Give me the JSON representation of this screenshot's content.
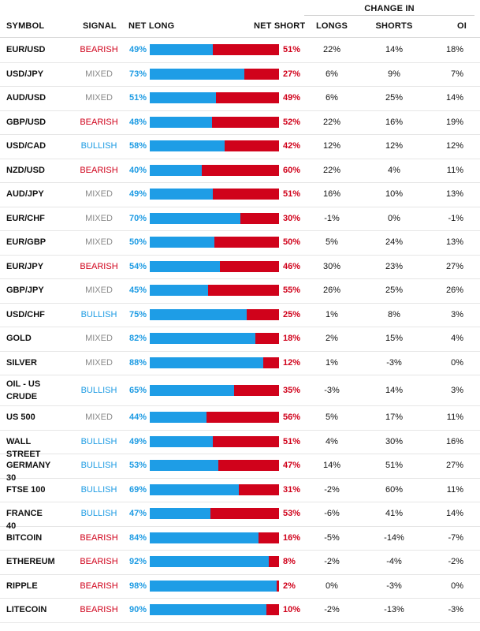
{
  "header": {
    "change_in": "CHANGE IN",
    "symbol": "SYMBOL",
    "signal": "SIGNAL",
    "net_long": "NET LONG",
    "net_short": "NET SHORT",
    "longs": "LONGS",
    "shorts": "SHORTS",
    "oi": "OI"
  },
  "colors": {
    "bearish": "#d0021b",
    "bullish": "#1d9be3",
    "mixed": "#8a8a8a",
    "long_bar": "#1e9de6",
    "short_bar": "#d0021b"
  },
  "rows": [
    {
      "symbol": "EUR/USD",
      "signal": "BEARISH",
      "net_long": "49%",
      "net_short": "51%",
      "long_frac": 0.49,
      "longs": "22%",
      "shorts": "14%",
      "oi": "18%"
    },
    {
      "symbol": "USD/JPY",
      "signal": "MIXED",
      "net_long": "73%",
      "net_short": "27%",
      "long_frac": 0.73,
      "longs": "6%",
      "shorts": "9%",
      "oi": "7%"
    },
    {
      "symbol": "AUD/USD",
      "signal": "MIXED",
      "net_long": "51%",
      "net_short": "49%",
      "long_frac": 0.51,
      "longs": "6%",
      "shorts": "25%",
      "oi": "14%"
    },
    {
      "symbol": "GBP/USD",
      "signal": "BEARISH",
      "net_long": "48%",
      "net_short": "52%",
      "long_frac": 0.48,
      "longs": "22%",
      "shorts": "16%",
      "oi": "19%"
    },
    {
      "symbol": "USD/CAD",
      "signal": "BULLISH",
      "net_long": "58%",
      "net_short": "42%",
      "long_frac": 0.58,
      "longs": "12%",
      "shorts": "12%",
      "oi": "12%"
    },
    {
      "symbol": "NZD/USD",
      "signal": "BEARISH",
      "net_long": "40%",
      "net_short": "60%",
      "long_frac": 0.4,
      "longs": "22%",
      "shorts": "4%",
      "oi": "11%"
    },
    {
      "symbol": "AUD/JPY",
      "signal": "MIXED",
      "net_long": "49%",
      "net_short": "51%",
      "long_frac": 0.49,
      "longs": "16%",
      "shorts": "10%",
      "oi": "13%"
    },
    {
      "symbol": "EUR/CHF",
      "signal": "MIXED",
      "net_long": "70%",
      "net_short": "30%",
      "long_frac": 0.7,
      "longs": "-1%",
      "shorts": "0%",
      "oi": "-1%"
    },
    {
      "symbol": "EUR/GBP",
      "signal": "MIXED",
      "net_long": "50%",
      "net_short": "50%",
      "long_frac": 0.5,
      "longs": "5%",
      "shorts": "24%",
      "oi": "13%"
    },
    {
      "symbol": "EUR/JPY",
      "signal": "BEARISH",
      "net_long": "54%",
      "net_short": "46%",
      "long_frac": 0.54,
      "longs": "30%",
      "shorts": "23%",
      "oi": "27%"
    },
    {
      "symbol": "GBP/JPY",
      "signal": "MIXED",
      "net_long": "45%",
      "net_short": "55%",
      "long_frac": 0.45,
      "longs": "26%",
      "shorts": "25%",
      "oi": "26%"
    },
    {
      "symbol": "USD/CHF",
      "signal": "BULLISH",
      "net_long": "75%",
      "net_short": "25%",
      "long_frac": 0.75,
      "longs": "1%",
      "shorts": "8%",
      "oi": "3%"
    },
    {
      "symbol": "GOLD",
      "signal": "MIXED",
      "net_long": "82%",
      "net_short": "18%",
      "long_frac": 0.82,
      "longs": "2%",
      "shorts": "15%",
      "oi": "4%"
    },
    {
      "symbol": "SILVER",
      "signal": "MIXED",
      "net_long": "88%",
      "net_short": "12%",
      "long_frac": 0.88,
      "longs": "1%",
      "shorts": "-3%",
      "oi": "0%"
    },
    {
      "symbol": "OIL - US CRUDE",
      "signal": "BULLISH",
      "net_long": "65%",
      "net_short": "35%",
      "long_frac": 0.65,
      "longs": "-3%",
      "shorts": "14%",
      "oi": "3%"
    },
    {
      "symbol": "US 500",
      "signal": "MIXED",
      "net_long": "44%",
      "net_short": "56%",
      "long_frac": 0.44,
      "longs": "5%",
      "shorts": "17%",
      "oi": "11%"
    },
    {
      "symbol": "WALL STREET",
      "signal": "BULLISH",
      "net_long": "49%",
      "net_short": "51%",
      "long_frac": 0.49,
      "longs": "4%",
      "shorts": "30%",
      "oi": "16%"
    },
    {
      "symbol": "GERMANY 30",
      "signal": "BULLISH",
      "net_long": "53%",
      "net_short": "47%",
      "long_frac": 0.53,
      "longs": "14%",
      "shorts": "51%",
      "oi": "27%"
    },
    {
      "symbol": "FTSE 100",
      "signal": "BULLISH",
      "net_long": "69%",
      "net_short": "31%",
      "long_frac": 0.69,
      "longs": "-2%",
      "shorts": "60%",
      "oi": "11%"
    },
    {
      "symbol": "FRANCE 40",
      "signal": "BULLISH",
      "net_long": "47%",
      "net_short": "53%",
      "long_frac": 0.47,
      "longs": "-6%",
      "shorts": "41%",
      "oi": "14%"
    },
    {
      "symbol": "BITCOIN",
      "signal": "BEARISH",
      "net_long": "84%",
      "net_short": "16%",
      "long_frac": 0.84,
      "longs": "-5%",
      "shorts": "-14%",
      "oi": "-7%"
    },
    {
      "symbol": "ETHEREUM",
      "signal": "BEARISH",
      "net_long": "92%",
      "net_short": "8%",
      "long_frac": 0.92,
      "longs": "-2%",
      "shorts": "-4%",
      "oi": "-2%"
    },
    {
      "symbol": "RIPPLE",
      "signal": "BEARISH",
      "net_long": "98%",
      "net_short": "2%",
      "long_frac": 0.98,
      "longs": "0%",
      "shorts": "-3%",
      "oi": "0%"
    },
    {
      "symbol": "LITECOIN",
      "signal": "BEARISH",
      "net_long": "90%",
      "net_short": "10%",
      "long_frac": 0.9,
      "longs": "-2%",
      "shorts": "-13%",
      "oi": "-3%"
    }
  ]
}
